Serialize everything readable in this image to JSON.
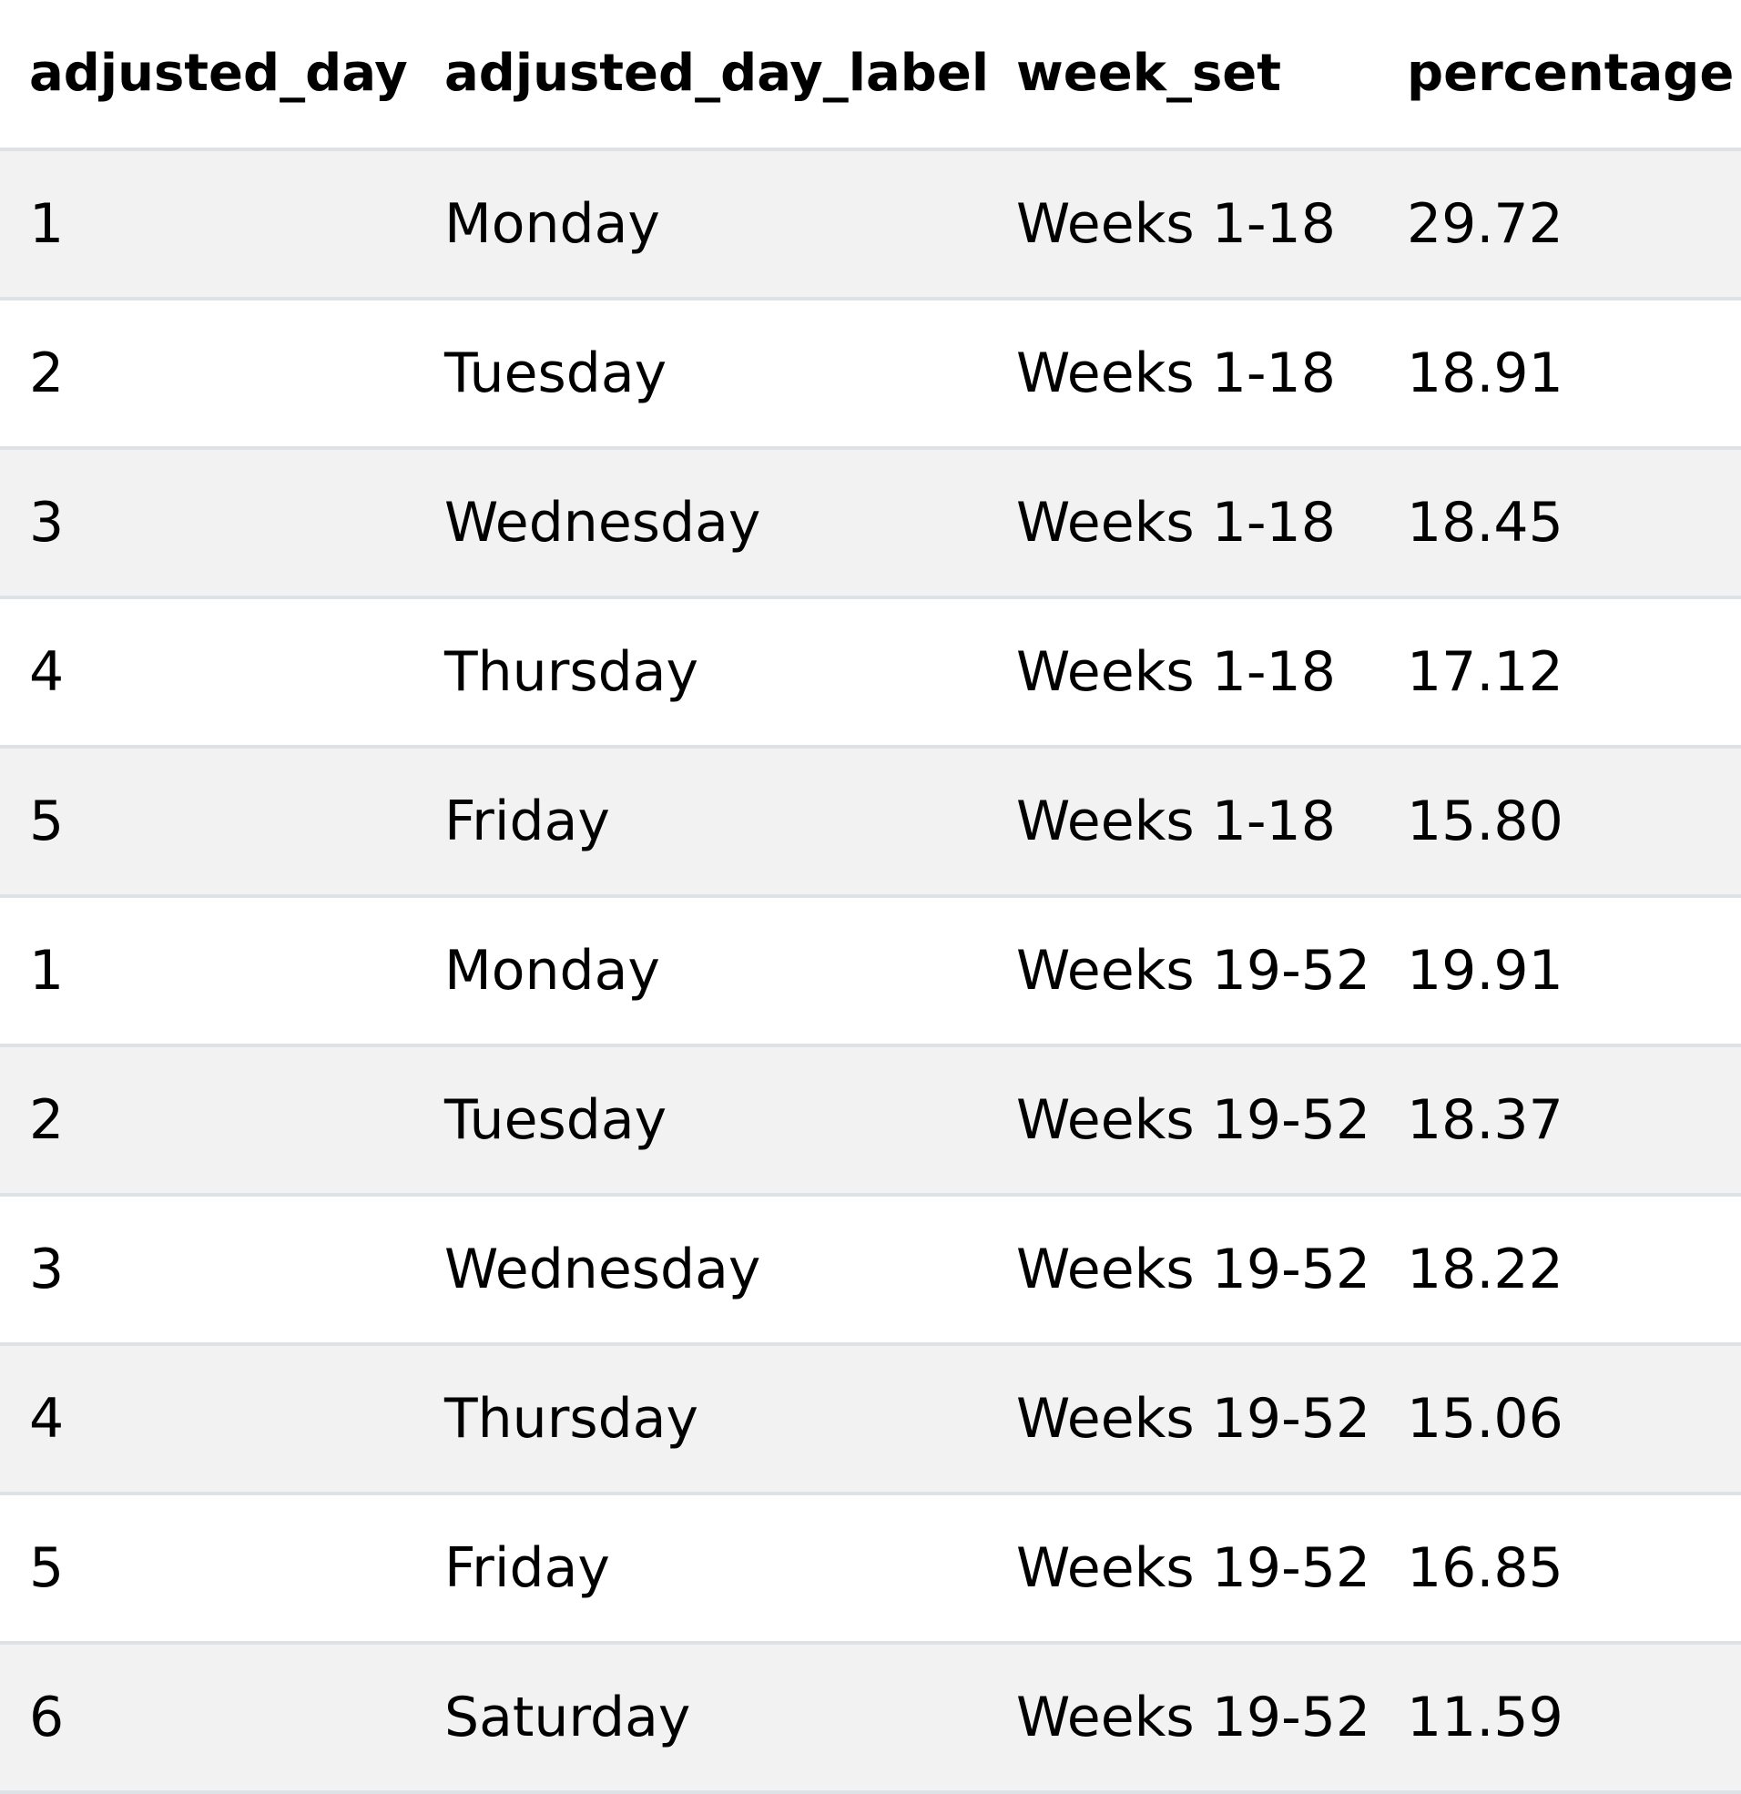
{
  "table": {
    "columns": [
      "adjusted_day",
      "adjusted_day_label",
      "week_set",
      "percentage"
    ],
    "rows": [
      [
        "1",
        "Monday",
        "Weeks 1-18",
        "29.72"
      ],
      [
        "2",
        "Tuesday",
        "Weeks 1-18",
        "18.91"
      ],
      [
        "3",
        "Wednesday",
        "Weeks 1-18",
        "18.45"
      ],
      [
        "4",
        "Thursday",
        "Weeks 1-18",
        "17.12"
      ],
      [
        "5",
        "Friday",
        "Weeks 1-18",
        "15.80"
      ],
      [
        "1",
        "Monday",
        "Weeks 19-52",
        "19.91"
      ],
      [
        "2",
        "Tuesday",
        "Weeks 19-52",
        "18.37"
      ],
      [
        "3",
        "Wednesday",
        "Weeks 19-52",
        "18.22"
      ],
      [
        "4",
        "Thursday",
        "Weeks 19-52",
        "15.06"
      ],
      [
        "5",
        "Friday",
        "Weeks 19-52",
        "16.85"
      ],
      [
        "6",
        "Saturday",
        "Weeks 19-52",
        "11.59"
      ]
    ]
  }
}
